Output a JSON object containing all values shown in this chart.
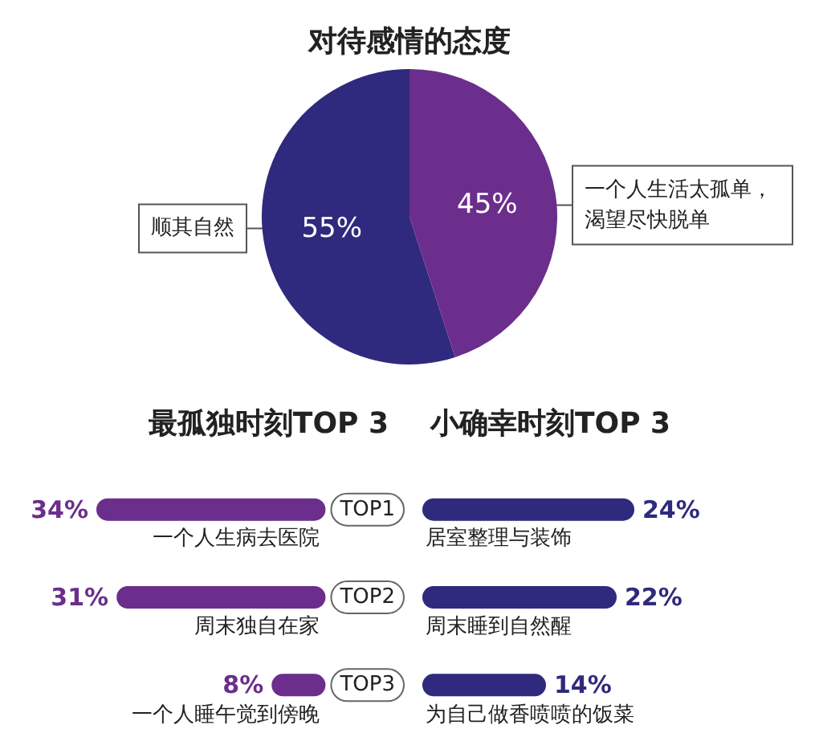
{
  "chart_data": [
    {
      "type": "pie",
      "title": "对待感情的态度",
      "categories": [
        "顺其自然",
        "一个人生活太孤单，渴望尽快脱单"
      ],
      "values": [
        55,
        45
      ],
      "colors": [
        "#2f2a7d",
        "#6b2e8c"
      ],
      "value_labels": [
        "55%",
        "45%"
      ]
    },
    {
      "type": "bar",
      "orientation": "horizontal",
      "title": "最孤独时刻TOP 3",
      "categories": [
        "TOP1",
        "TOP2",
        "TOP3"
      ],
      "xlim": [
        34,
        0
      ],
      "tick_labels": "y",
      "series": [
        {
          "color": "#6b2e8c",
          "values": [
            34,
            31,
            8
          ],
          "value_labels": [
            "34%",
            "31%",
            "8%"
          ]
        }
      ],
      "annotations": [
        "一个人生病去医院",
        "周末独自在家",
        "一个人睡午觉到傍晚"
      ]
    },
    {
      "type": "bar",
      "orientation": "horizontal",
      "title": "小确幸时刻TOP 3",
      "categories": [
        null,
        null,
        null
      ],
      "tick_labels": false,
      "series": [
        {
          "color": "#2f2a7d",
          "values": [
            24,
            22,
            14
          ],
          "value_labels": [
            "24%",
            "22%",
            "14%"
          ]
        }
      ],
      "annotations": [
        "居室整理与装饰",
        "周末睡到自然醒",
        "为自己做香喷喷的饭菜"
      ]
    }
  ]
}
